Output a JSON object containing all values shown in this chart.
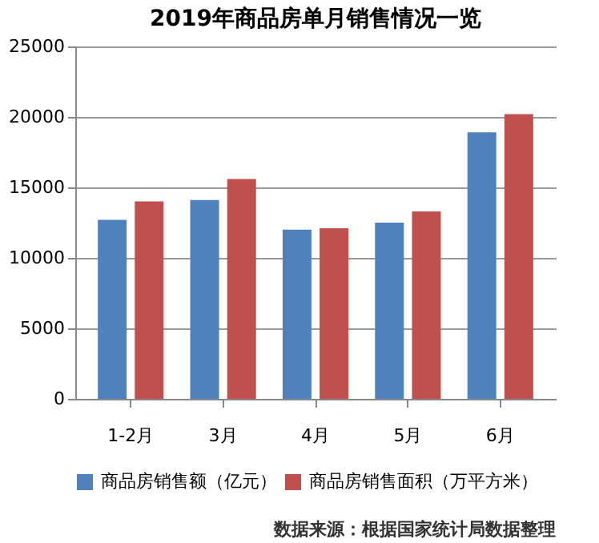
{
  "chart_data": {
    "type": "bar",
    "title": "2019年商品房单月销售情况一览",
    "categories": [
      "1-2月",
      "3月",
      "4月",
      "5月",
      "6月"
    ],
    "series": [
      {
        "name": "商品房销售额（亿元）",
        "color": "#4f81bd",
        "values": [
          12700,
          14100,
          12000,
          12500,
          18900
        ]
      },
      {
        "name": "商品房销售面积（万平方米）",
        "color": "#c0504d",
        "values": [
          14000,
          15600,
          12100,
          13300,
          20200
        ]
      }
    ],
    "ylim": [
      0,
      25000
    ],
    "yticks": [
      0,
      5000,
      10000,
      15000,
      20000,
      25000
    ],
    "grid": "y",
    "legend": "bottom",
    "annotations": [
      "数据来源：根据国家统计局数据整理"
    ]
  }
}
